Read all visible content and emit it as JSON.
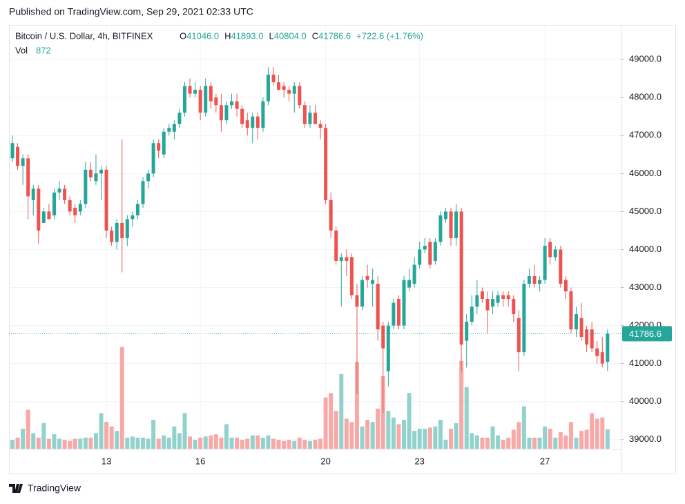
{
  "header": {
    "published": "Published on TradingView.com, Sep 29, 2021 02:33 UTC"
  },
  "footer": {
    "brand": "TradingView"
  },
  "chart_data": {
    "type": "candlestick",
    "title": "Bitcoin / U.S. Dollar, 4h, BITFINEX",
    "legend": [
      {
        "label": "O",
        "value": "41046.0"
      },
      {
        "label": "H",
        "value": "41893.0"
      },
      {
        "label": "L",
        "value": "40804.0"
      },
      {
        "label": "C",
        "value": "41786.6"
      },
      {
        "label": "",
        "value": "+722.6 (+1.76%)"
      }
    ],
    "volume_label": "Vol",
    "volume_value": "872",
    "up_color": "#26a69a",
    "down_color": "#ef5350",
    "volume_up_color": "#92d2cc",
    "volume_down_color": "#f7a9a7",
    "grid": true,
    "ylim": [
      38760,
      49910
    ],
    "yticks": [
      {
        "value": 39000,
        "label": "39000.0"
      },
      {
        "value": 40000,
        "label": "40000.0"
      },
      {
        "value": 41000,
        "label": "41000.0"
      },
      {
        "value": 42000,
        "label": "42000.0"
      },
      {
        "value": 43000,
        "label": "43000.0"
      },
      {
        "value": 44000,
        "label": "44000.0"
      },
      {
        "value": 45000,
        "label": "45000.0"
      },
      {
        "value": 46000,
        "label": "46000.0"
      },
      {
        "value": 47000,
        "label": "47000.0"
      },
      {
        "value": 48000,
        "label": "48000.0"
      },
      {
        "value": 49000,
        "label": "49000.0"
      }
    ],
    "last_price": {
      "value": 41786.6,
      "label": "41786.6"
    },
    "vlim": [
      0,
      19000
    ],
    "categories": [
      null,
      null,
      null,
      null,
      null,
      null,
      null,
      null,
      null,
      null,
      null,
      null,
      null,
      null,
      null,
      null,
      null,
      null,
      "13",
      null,
      null,
      null,
      null,
      null,
      null,
      null,
      null,
      null,
      null,
      null,
      null,
      null,
      null,
      null,
      null,
      null,
      "16",
      null,
      null,
      null,
      null,
      null,
      null,
      null,
      null,
      null,
      null,
      null,
      null,
      null,
      null,
      null,
      null,
      null,
      null,
      null,
      null,
      null,
      null,
      null,
      "20",
      null,
      null,
      null,
      null,
      null,
      null,
      null,
      null,
      null,
      null,
      null,
      null,
      null,
      null,
      null,
      null,
      null,
      "23",
      null,
      null,
      null,
      null,
      null,
      null,
      null,
      null,
      null,
      null,
      null,
      null,
      null,
      null,
      null,
      null,
      null,
      null,
      null,
      null,
      null,
      null,
      null,
      "27",
      null,
      null,
      null,
      null,
      null,
      null,
      null,
      null,
      null,
      null,
      null,
      null
    ],
    "candles": [
      [
        46400,
        47000,
        46300,
        46800
      ],
      [
        46700,
        46800,
        46100,
        46200
      ],
      [
        46200,
        46500,
        45700,
        46400
      ],
      [
        46400,
        46500,
        44800,
        45400
      ],
      [
        45300,
        45700,
        44900,
        45600
      ],
      [
        45600,
        45700,
        44150,
        44500
      ],
      [
        44700,
        45100,
        44700,
        45000
      ],
      [
        45000,
        45200,
        44800,
        44800
      ],
      [
        44900,
        45600,
        44800,
        45500
      ],
      [
        45500,
        45800,
        45300,
        45600
      ],
      [
        45600,
        45700,
        45200,
        45300
      ],
      [
        45300,
        45400,
        44900,
        45000
      ],
      [
        45100,
        45200,
        44700,
        44900
      ],
      [
        45000,
        45300,
        44900,
        45200
      ],
      [
        45200,
        46300,
        45100,
        46100
      ],
      [
        46100,
        46300,
        45800,
        45900
      ],
      [
        45800,
        46500,
        45700,
        46000
      ],
      [
        46000,
        46200,
        45300,
        46100
      ],
      [
        46100,
        46200,
        44300,
        44500
      ],
      [
        44500,
        44600,
        44100,
        44200
      ],
      [
        44200,
        44800,
        44000,
        44700
      ],
      [
        44700,
        46900,
        43400,
        44300
      ],
      [
        44300,
        44900,
        44100,
        44800
      ],
      [
        44800,
        45000,
        44600,
        44900
      ],
      [
        44900,
        45300,
        44800,
        45200
      ],
      [
        45200,
        45900,
        45100,
        45800
      ],
      [
        45800,
        46100,
        45600,
        46000
      ],
      [
        46000,
        46900,
        45900,
        46800
      ],
      [
        46800,
        46900,
        46400,
        46600
      ],
      [
        46500,
        47200,
        46400,
        47100
      ],
      [
        47100,
        47300,
        47000,
        47200
      ],
      [
        47100,
        47400,
        46900,
        47300
      ],
      [
        47300,
        47700,
        47200,
        47600
      ],
      [
        47600,
        48400,
        47500,
        48300
      ],
      [
        48300,
        48500,
        48000,
        48100
      ],
      [
        48100,
        48400,
        48000,
        48200
      ],
      [
        48200,
        48300,
        47400,
        47600
      ],
      [
        47600,
        48500,
        47500,
        48300
      ],
      [
        48300,
        48400,
        47700,
        47900
      ],
      [
        48000,
        48100,
        47600,
        47800
      ],
      [
        47800,
        48100,
        47100,
        47400
      ],
      [
        47400,
        47900,
        47300,
        47800
      ],
      [
        47800,
        48100,
        47700,
        47900
      ],
      [
        47900,
        48100,
        47500,
        47700
      ],
      [
        47700,
        47800,
        47200,
        47300
      ],
      [
        47400,
        47600,
        47000,
        47200
      ],
      [
        47200,
        47600,
        46800,
        47500
      ],
      [
        47500,
        47600,
        46900,
        47200
      ],
      [
        47200,
        48000,
        47100,
        47900
      ],
      [
        47900,
        48800,
        47800,
        48600
      ],
      [
        48600,
        48800,
        48300,
        48400
      ],
      [
        48400,
        48600,
        48200,
        48200
      ],
      [
        48300,
        48400,
        48000,
        48200
      ],
      [
        48200,
        48300,
        47900,
        48100
      ],
      [
        48100,
        48400,
        47600,
        48300
      ],
      [
        48300,
        48400,
        47700,
        47800
      ],
      [
        47800,
        47900,
        47200,
        47300
      ],
      [
        47300,
        47800,
        47200,
        47600
      ],
      [
        47600,
        47800,
        47300,
        47300
      ],
      [
        47300,
        47400,
        46900,
        47200
      ],
      [
        47200,
        47300,
        45200,
        45300
      ],
      [
        45300,
        45500,
        44300,
        44500
      ],
      [
        44500,
        44600,
        43600,
        43700
      ],
      [
        43700,
        43900,
        42500,
        43800
      ],
      [
        43800,
        44000,
        43300,
        43700
      ],
      [
        43800,
        43900,
        42700,
        42800
      ],
      [
        42800,
        43100,
        40200,
        42500
      ],
      [
        42500,
        43300,
        42400,
        43200
      ],
      [
        43300,
        43600,
        43000,
        43200
      ],
      [
        43100,
        43500,
        42500,
        43200
      ],
      [
        43100,
        43300,
        41600,
        41900
      ],
      [
        42000,
        42100,
        39700,
        41400
      ],
      [
        40800,
        42100,
        40400,
        42000
      ],
      [
        42000,
        42700,
        41900,
        42600
      ],
      [
        42700,
        42800,
        41900,
        42000
      ],
      [
        42000,
        43300,
        41900,
        43200
      ],
      [
        43000,
        43500,
        42900,
        43200
      ],
      [
        43100,
        43800,
        43000,
        43600
      ],
      [
        43600,
        44200,
        43500,
        44000
      ],
      [
        44000,
        44300,
        43900,
        44100
      ],
      [
        44200,
        44300,
        43500,
        43600
      ],
      [
        43700,
        44300,
        43600,
        44200
      ],
      [
        44200,
        45000,
        44100,
        44900
      ],
      [
        44800,
        45100,
        44700,
        45000
      ],
      [
        45000,
        45100,
        44100,
        44300
      ],
      [
        44300,
        45200,
        44100,
        45000
      ],
      [
        45000,
        45100,
        40800,
        41500
      ],
      [
        41600,
        42300,
        40900,
        42100
      ],
      [
        42100,
        42800,
        42000,
        42500
      ],
      [
        42500,
        43200,
        42300,
        42800
      ],
      [
        42900,
        43000,
        42600,
        42700
      ],
      [
        42700,
        42900,
        41800,
        42400
      ],
      [
        42500,
        42900,
        42300,
        42700
      ],
      [
        42600,
        42900,
        42500,
        42800
      ],
      [
        42800,
        42900,
        42500,
        42700
      ],
      [
        42800,
        42900,
        42500,
        42700
      ],
      [
        42700,
        42800,
        42100,
        42300
      ],
      [
        42200,
        42400,
        40800,
        41300
      ],
      [
        41300,
        43200,
        41200,
        43100
      ],
      [
        43100,
        43500,
        43000,
        43300
      ],
      [
        43300,
        43600,
        43000,
        43100
      ],
      [
        43100,
        43300,
        42900,
        43200
      ],
      [
        43200,
        44300,
        43100,
        44100
      ],
      [
        44200,
        44300,
        43600,
        43800
      ],
      [
        43800,
        44100,
        43700,
        44000
      ],
      [
        44000,
        44100,
        43000,
        43100
      ],
      [
        43200,
        43300,
        42700,
        42900
      ],
      [
        42900,
        43000,
        41800,
        41900
      ],
      [
        41900,
        42500,
        41700,
        42300
      ],
      [
        42200,
        42600,
        41600,
        41700
      ],
      [
        41900,
        42000,
        41300,
        41500
      ],
      [
        41900,
        42100,
        41300,
        41400
      ],
      [
        41400,
        41600,
        41000,
        41200
      ],
      [
        41300,
        41700,
        40900,
        41000
      ],
      [
        41046,
        41893,
        40804,
        41786.6
      ]
    ],
    "volume": [
      400,
      500,
      900,
      1750,
      700,
      500,
      1150,
      450,
      650,
      450,
      400,
      350,
      450,
      450,
      500,
      500,
      700,
      1600,
      1200,
      1000,
      800,
      4560,
      500,
      550,
      500,
      500,
      450,
      1300,
      450,
      600,
      500,
      1000,
      700,
      1600,
      550,
      400,
      500,
      550,
      600,
      650,
      500,
      1100,
      500,
      500,
      400,
      450,
      600,
      600,
      500,
      600,
      450,
      400,
      350,
      400,
      350,
      500,
      400,
      350,
      400,
      450,
      2300,
      2500,
      1700,
      3350,
      1350,
      1200,
      3900,
      1000,
      1300,
      1200,
      1800,
      3250,
      1700,
      1400,
      1100,
      1300,
      2500,
      800,
      900,
      900,
      950,
      1000,
      1300,
      400,
      900,
      1150,
      3940,
      2760,
      700,
      600,
      500,
      500,
      1000,
      600,
      400,
      500,
      850,
      1200,
      1900,
      500,
      500,
      500,
      1000,
      900,
      500,
      750,
      600,
      1200,
      500,
      800,
      850,
      1600,
      1350,
      1400,
      872
    ]
  }
}
